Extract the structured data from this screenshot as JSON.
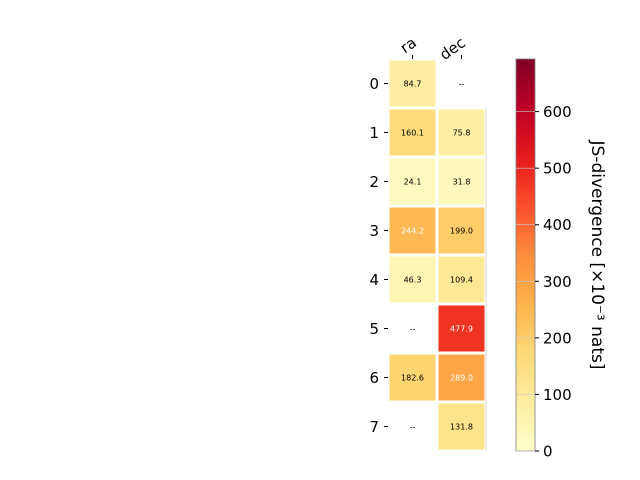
{
  "chart_data": {
    "type": "heatmap",
    "columns": [
      "ra",
      "dec"
    ],
    "rows": [
      "0",
      "1",
      "2",
      "3",
      "4",
      "5",
      "6",
      "7"
    ],
    "values": [
      [
        84.7,
        null
      ],
      [
        160.1,
        75.8
      ],
      [
        24.1,
        31.8
      ],
      [
        244.2,
        199.0
      ],
      [
        46.3,
        109.4
      ],
      [
        null,
        477.9
      ],
      [
        182.6,
        289.0
      ],
      [
        null,
        131.8
      ]
    ],
    "labels": [
      [
        "84.7",
        "--"
      ],
      [
        "160.1",
        "75.8"
      ],
      [
        "24.1",
        "31.8"
      ],
      [
        "244.2",
        "199.0"
      ],
      [
        "46.3",
        "109.4"
      ],
      [
        "--",
        "477.9"
      ],
      [
        "182.6",
        "289.0"
      ],
      [
        "--",
        "131.8"
      ]
    ],
    "missing_label": "--",
    "colorbar": {
      "label": "JS-divergence [×10⁻³ nats]",
      "range": [
        0,
        693
      ],
      "ticks": [
        0,
        100,
        200,
        300,
        400,
        500,
        600
      ],
      "tick_labels": [
        "0",
        "100",
        "200",
        "300",
        "400",
        "500",
        "600"
      ],
      "colormap": "YlOrRd"
    },
    "grid": false
  }
}
